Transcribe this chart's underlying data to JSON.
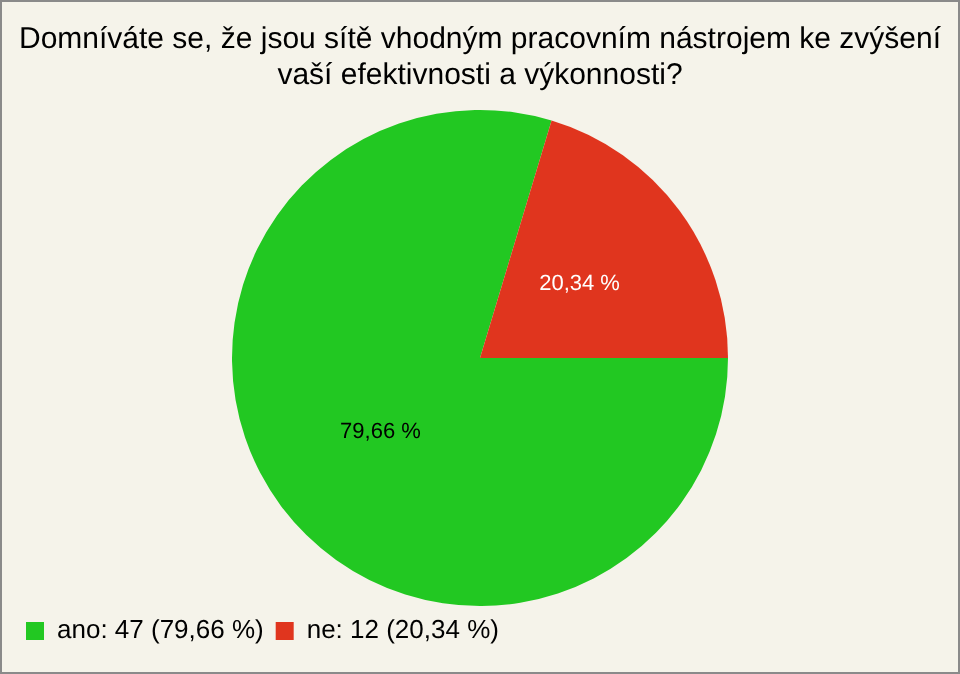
{
  "chart_data": {
    "type": "pie",
    "title": "Domníváte se, že jsou sítě vhodným pracovním nástrojem ke zvýšení vaší efektivnosti a výkonnosti?",
    "categories": [
      "ano: 47 (79,66 %)",
      "ne: 12 (20,34 %)"
    ],
    "values": [
      79.66,
      20.34
    ],
    "colors": [
      "#22c822",
      "#e0351e"
    ],
    "value_labels": [
      "79,66 %",
      "20,34 %"
    ],
    "legend": "bottom left"
  }
}
